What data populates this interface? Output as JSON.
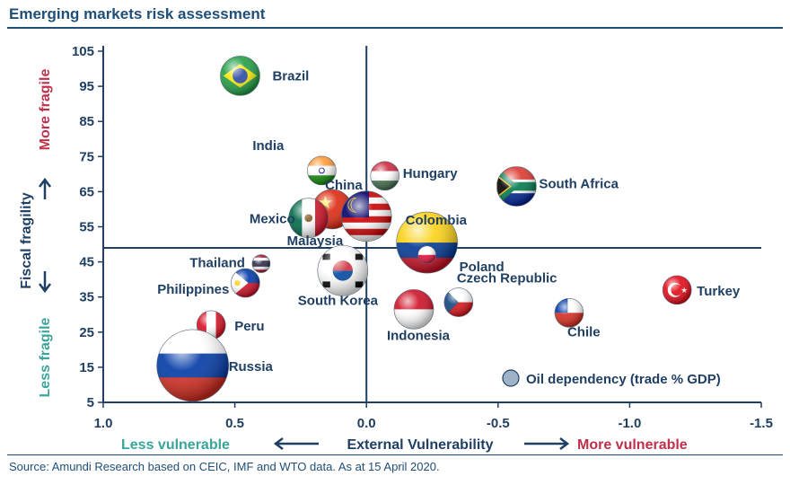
{
  "title": "Emerging markets risk assessment",
  "source": "Source: Amundi Research based on CEIC, IMF and WTO data. As at 15 April 2020.",
  "chart_data": {
    "type": "scatter",
    "title": "Emerging markets risk assessment",
    "xlabel": "External Vulnerability",
    "ylabel": "Fiscal fragility",
    "x_left_annotation": "Less vulnerable",
    "x_right_annotation": "More vulnerable",
    "y_top_annotation": "More fragile",
    "y_bottom_annotation": "Less fragile",
    "xlim": [
      1.0,
      -1.5
    ],
    "ylim": [
      5,
      105
    ],
    "x_ticks": [
      "1.0",
      "0.5",
      "0.0",
      "-0.5",
      "-1.0",
      "-1.5"
    ],
    "x_tick_values": [
      1.0,
      0.5,
      0.0,
      -0.5,
      -1.0,
      -1.5
    ],
    "y_ticks": [
      "5",
      "15",
      "25",
      "35",
      "45",
      "55",
      "65",
      "75",
      "85",
      "95",
      "105"
    ],
    "y_tick_values": [
      5,
      15,
      25,
      35,
      45,
      55,
      65,
      75,
      85,
      95,
      105
    ],
    "quadrant_lines": {
      "x": 0.0,
      "y": 49
    },
    "bubble_size_legend": "Oil dependency (trade % GDP)",
    "points": [
      {
        "label": "Brazil",
        "x": 0.48,
        "y": 98,
        "size": 3,
        "flag": "brazil"
      },
      {
        "label": "India",
        "x": 0.17,
        "y": 71,
        "size": 2,
        "flag": "india"
      },
      {
        "label": "Hungary",
        "x": -0.07,
        "y": 69.5,
        "size": 2,
        "flag": "hungary"
      },
      {
        "label": "South Africa",
        "x": -0.57,
        "y": 66.5,
        "size": 3,
        "flag": "southafrica"
      },
      {
        "label": "China",
        "x": 0.13,
        "y": 60,
        "size": 3,
        "flag": "china"
      },
      {
        "label": "Mexico",
        "x": 0.22,
        "y": 57.5,
        "size": 3,
        "flag": "mexico"
      },
      {
        "label": "Malaysia",
        "x": 0.0,
        "y": 58,
        "size": 4,
        "flag": "malaysia"
      },
      {
        "label": "Colombia",
        "x": -0.23,
        "y": 50.5,
        "size": 5,
        "flag": "colombia"
      },
      {
        "label": "Poland",
        "x": -0.23,
        "y": 47,
        "size": 1,
        "flag": "poland"
      },
      {
        "label": "Thailand",
        "x": 0.4,
        "y": 44.5,
        "size": 1,
        "flag": "thailand"
      },
      {
        "label": "South Korea",
        "x": 0.09,
        "y": 42.5,
        "size": 4,
        "flag": "southkorea"
      },
      {
        "label": "Philippines",
        "x": 0.46,
        "y": 39,
        "size": 2,
        "flag": "philippines"
      },
      {
        "label": "Czech Republic",
        "x": -0.35,
        "y": 33.5,
        "size": 2,
        "flag": "czech"
      },
      {
        "label": "Turkey",
        "x": -1.18,
        "y": 37,
        "size": 2,
        "flag": "turkey"
      },
      {
        "label": "Indonesia",
        "x": -0.18,
        "y": 31.5,
        "size": 3,
        "flag": "indonesia"
      },
      {
        "label": "Chile",
        "x": -0.77,
        "y": 30.5,
        "size": 2,
        "flag": "chile"
      },
      {
        "label": "Peru",
        "x": 0.59,
        "y": 27,
        "size": 2,
        "flag": "peru"
      },
      {
        "label": "Russia",
        "x": 0.66,
        "y": 15.5,
        "size": 6,
        "flag": "russia"
      }
    ]
  }
}
